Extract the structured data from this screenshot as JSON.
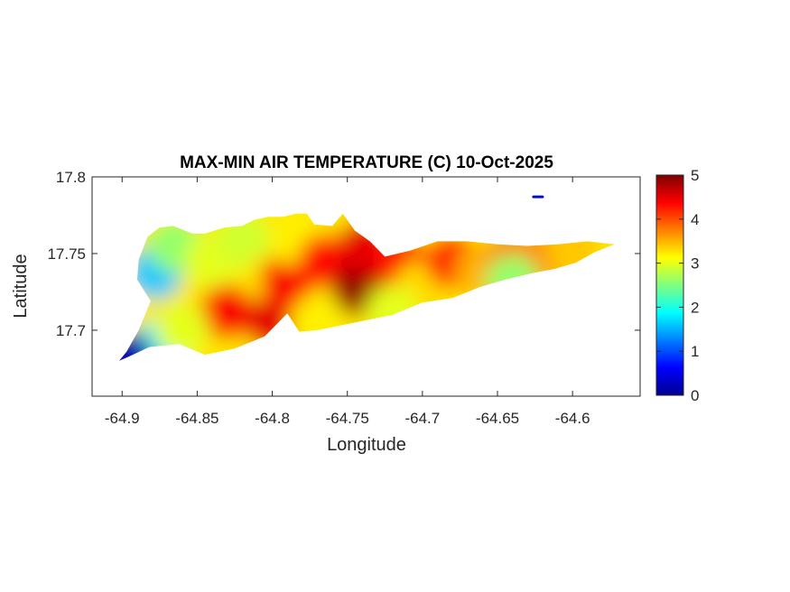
{
  "chart_data": {
    "type": "heatmap",
    "title": "MAX-MIN AIR TEMPERATURE (C) 10-Oct-2025",
    "xlabel": "Longitude",
    "ylabel": "Latitude",
    "xlim": [
      -64.92,
      -64.555
    ],
    "ylim": [
      17.657,
      17.8
    ],
    "x_ticks": [
      -64.9,
      -64.85,
      -64.8,
      -64.75,
      -64.7,
      -64.65,
      -64.6
    ],
    "x_tick_labels": [
      "-64.9",
      "-64.85",
      "-64.8",
      "-64.75",
      "-64.7",
      "-64.65",
      "-64.6"
    ],
    "y_ticks": [
      17.7,
      17.75,
      17.8
    ],
    "y_tick_labels": [
      "17.7",
      "17.75",
      "17.8"
    ],
    "colorbar": {
      "colormap": "jet",
      "min": 0,
      "max": 5,
      "ticks": [
        0,
        1,
        2,
        3,
        4,
        5
      ],
      "tick_labels": [
        "0",
        "1",
        "2",
        "3",
        "4",
        "5"
      ]
    },
    "island_outline": [
      [
        -64.875,
        17.767
      ],
      [
        -64.866,
        17.768
      ],
      [
        -64.853,
        17.763
      ],
      [
        -64.845,
        17.763
      ],
      [
        -64.832,
        17.767
      ],
      [
        -64.82,
        17.768
      ],
      [
        -64.812,
        17.772
      ],
      [
        -64.803,
        17.774
      ],
      [
        -64.793,
        17.774
      ],
      [
        -64.784,
        17.776
      ],
      [
        -64.777,
        17.776
      ],
      [
        -64.772,
        17.769
      ],
      [
        -64.76,
        17.768
      ],
      [
        -64.753,
        17.776
      ],
      [
        -64.745,
        17.765
      ],
      [
        -64.735,
        17.758
      ],
      [
        -64.725,
        17.748
      ],
      [
        -64.708,
        17.752
      ],
      [
        -64.69,
        17.758
      ],
      [
        -64.67,
        17.758
      ],
      [
        -64.65,
        17.756
      ],
      [
        -64.63,
        17.755
      ],
      [
        -64.61,
        17.756
      ],
      [
        -64.59,
        17.758
      ],
      [
        -64.572,
        17.756
      ],
      [
        -64.585,
        17.751
      ],
      [
        -64.598,
        17.744
      ],
      [
        -64.612,
        17.74
      ],
      [
        -64.628,
        17.737
      ],
      [
        -64.645,
        17.733
      ],
      [
        -64.662,
        17.728
      ],
      [
        -64.68,
        17.721
      ],
      [
        -64.7,
        17.718
      ],
      [
        -64.72,
        17.71
      ],
      [
        -64.74,
        17.706
      ],
      [
        -64.76,
        17.702
      ],
      [
        -64.77,
        17.7
      ],
      [
        -64.782,
        17.699
      ],
      [
        -64.79,
        17.711
      ],
      [
        -64.805,
        17.696
      ],
      [
        -64.825,
        17.688
      ],
      [
        -64.845,
        17.684
      ],
      [
        -64.862,
        17.691
      ],
      [
        -64.882,
        17.689
      ],
      [
        -64.895,
        17.683
      ],
      [
        -64.902,
        17.68
      ],
      [
        -64.897,
        17.686
      ],
      [
        -64.889,
        17.7
      ],
      [
        -64.881,
        17.719
      ],
      [
        -64.89,
        17.733
      ],
      [
        -64.889,
        17.746
      ],
      [
        -64.883,
        17.761
      ]
    ],
    "small_islet": [
      [
        -64.626,
        17.787
      ],
      [
        -64.62,
        17.787
      ]
    ],
    "temperature_centers": [
      {
        "lon": -64.878,
        "lat": 17.738,
        "value": 1.6
      },
      {
        "lon": -64.873,
        "lat": 17.69,
        "value": 1.8
      },
      {
        "lon": -64.898,
        "lat": 17.682,
        "value": 0.2
      },
      {
        "lon": -64.865,
        "lat": 17.755,
        "value": 2.6
      },
      {
        "lon": -64.84,
        "lat": 17.745,
        "value": 3.0
      },
      {
        "lon": -64.83,
        "lat": 17.712,
        "value": 4.4
      },
      {
        "lon": -64.8,
        "lat": 17.705,
        "value": 4.5
      },
      {
        "lon": -64.79,
        "lat": 17.733,
        "value": 4.4
      },
      {
        "lon": -64.785,
        "lat": 17.76,
        "value": 3.2
      },
      {
        "lon": -64.765,
        "lat": 17.745,
        "value": 4.3
      },
      {
        "lon": -64.742,
        "lat": 17.727,
        "value": 4.9
      },
      {
        "lon": -64.738,
        "lat": 17.755,
        "value": 4.5
      },
      {
        "lon": -64.715,
        "lat": 17.745,
        "value": 4.3
      },
      {
        "lon": -64.7,
        "lat": 17.728,
        "value": 3.3
      },
      {
        "lon": -64.68,
        "lat": 17.745,
        "value": 4.2
      },
      {
        "lon": -64.66,
        "lat": 17.738,
        "value": 3.5
      },
      {
        "lon": -64.64,
        "lat": 17.746,
        "value": 3.8
      },
      {
        "lon": -64.62,
        "lat": 17.748,
        "value": 3.7
      },
      {
        "lon": -64.6,
        "lat": 17.752,
        "value": 3.4
      },
      {
        "lon": -64.64,
        "lat": 17.732,
        "value": 2.6
      },
      {
        "lon": -64.72,
        "lat": 17.712,
        "value": 3.0
      },
      {
        "lon": -64.86,
        "lat": 17.7,
        "value": 3.0
      },
      {
        "lon": -64.77,
        "lat": 17.705,
        "value": 3.2
      },
      {
        "lon": -64.82,
        "lat": 17.76,
        "value": 2.9
      },
      {
        "lon": -64.623,
        "lat": 17.787,
        "value": 0.8
      }
    ]
  }
}
